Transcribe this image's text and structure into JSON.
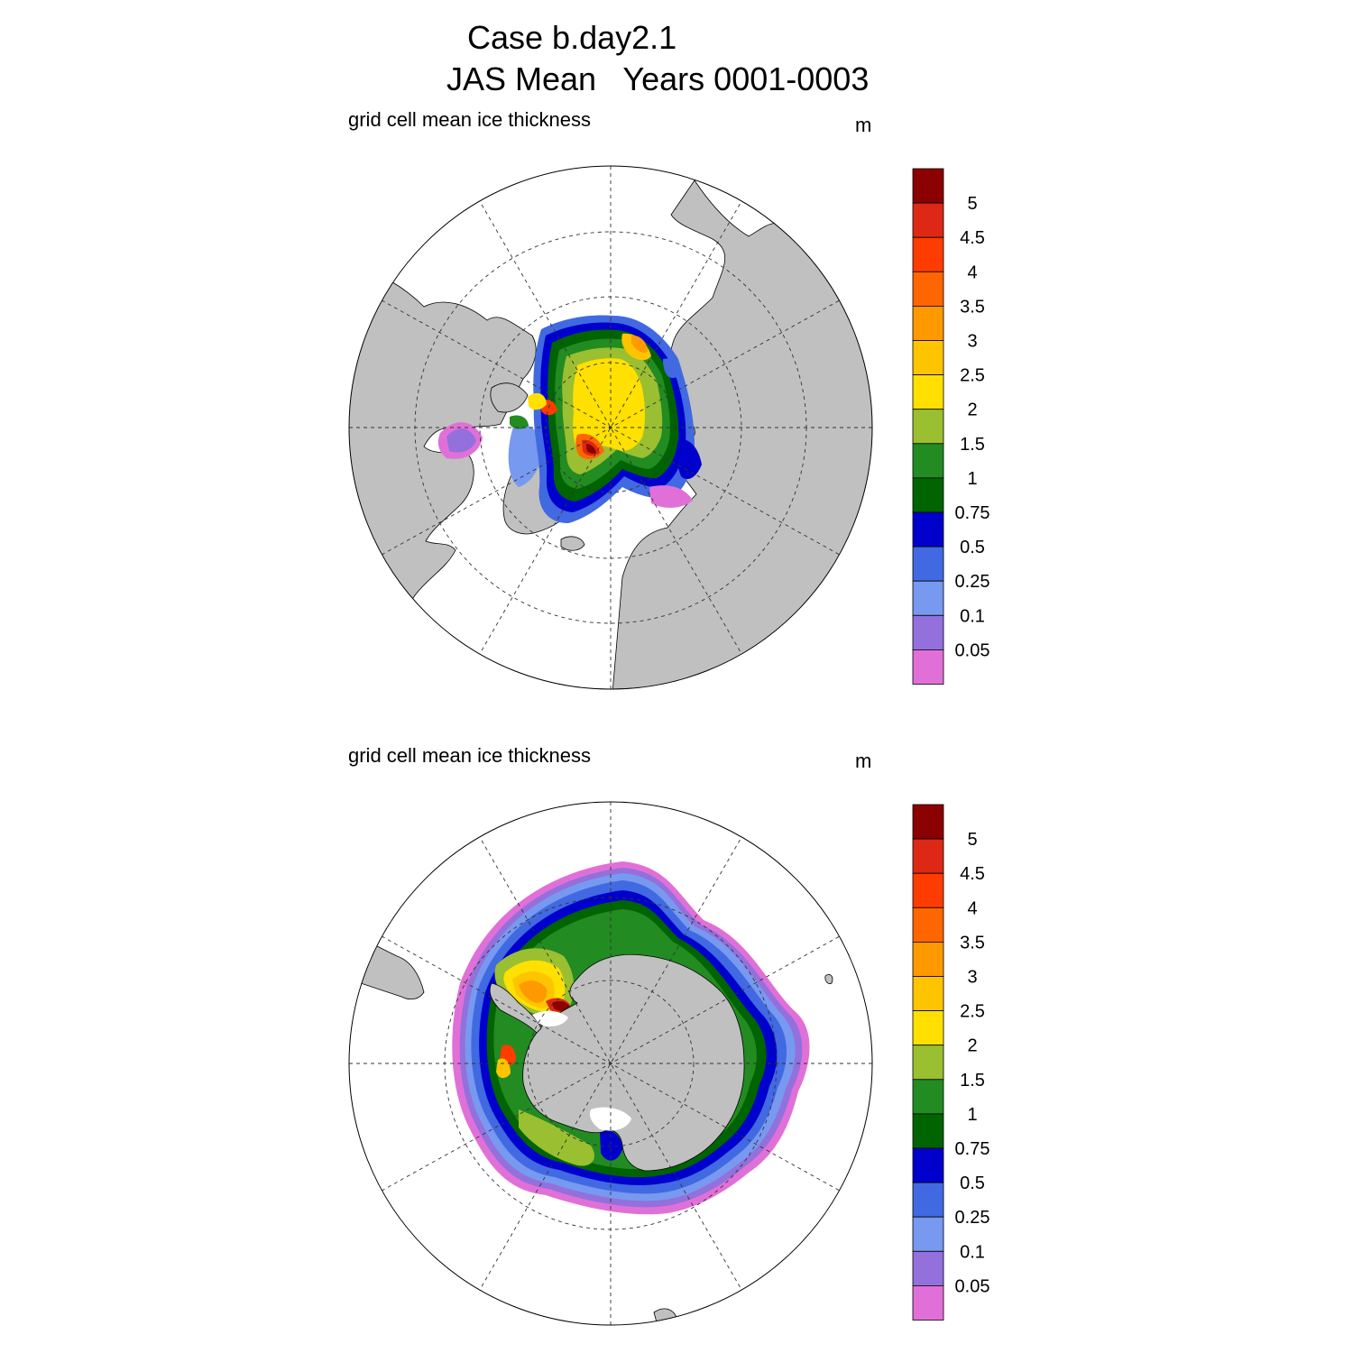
{
  "title": {
    "line1": "Case b.day2.1",
    "line2": "JAS Mean   Years 0001-0003"
  },
  "panels": [
    {
      "id": "north",
      "label": "grid cell mean ice thickness",
      "units": "m"
    },
    {
      "id": "south",
      "label": "grid cell mean ice thickness",
      "units": "m"
    }
  ],
  "colorbar": {
    "labels": [
      "5",
      "4.5",
      "4",
      "3.5",
      "3",
      "2.5",
      "2",
      "1.5",
      "1",
      "0.75",
      "0.5",
      "0.25",
      "0.1",
      "0.05"
    ],
    "colors": [
      "#8b0000",
      "#dc2814",
      "#ff3c00",
      "#ff6600",
      "#ff9900",
      "#ffc400",
      "#ffe000",
      "#9abf30",
      "#228b22",
      "#006400",
      "#0000cd",
      "#4169e1",
      "#7799f0",
      "#9370db",
      "#e070d8"
    ]
  },
  "map_style": {
    "land_color": "#c0c0c0",
    "ocean_color": "#ffffff",
    "grid": "dashed"
  }
}
